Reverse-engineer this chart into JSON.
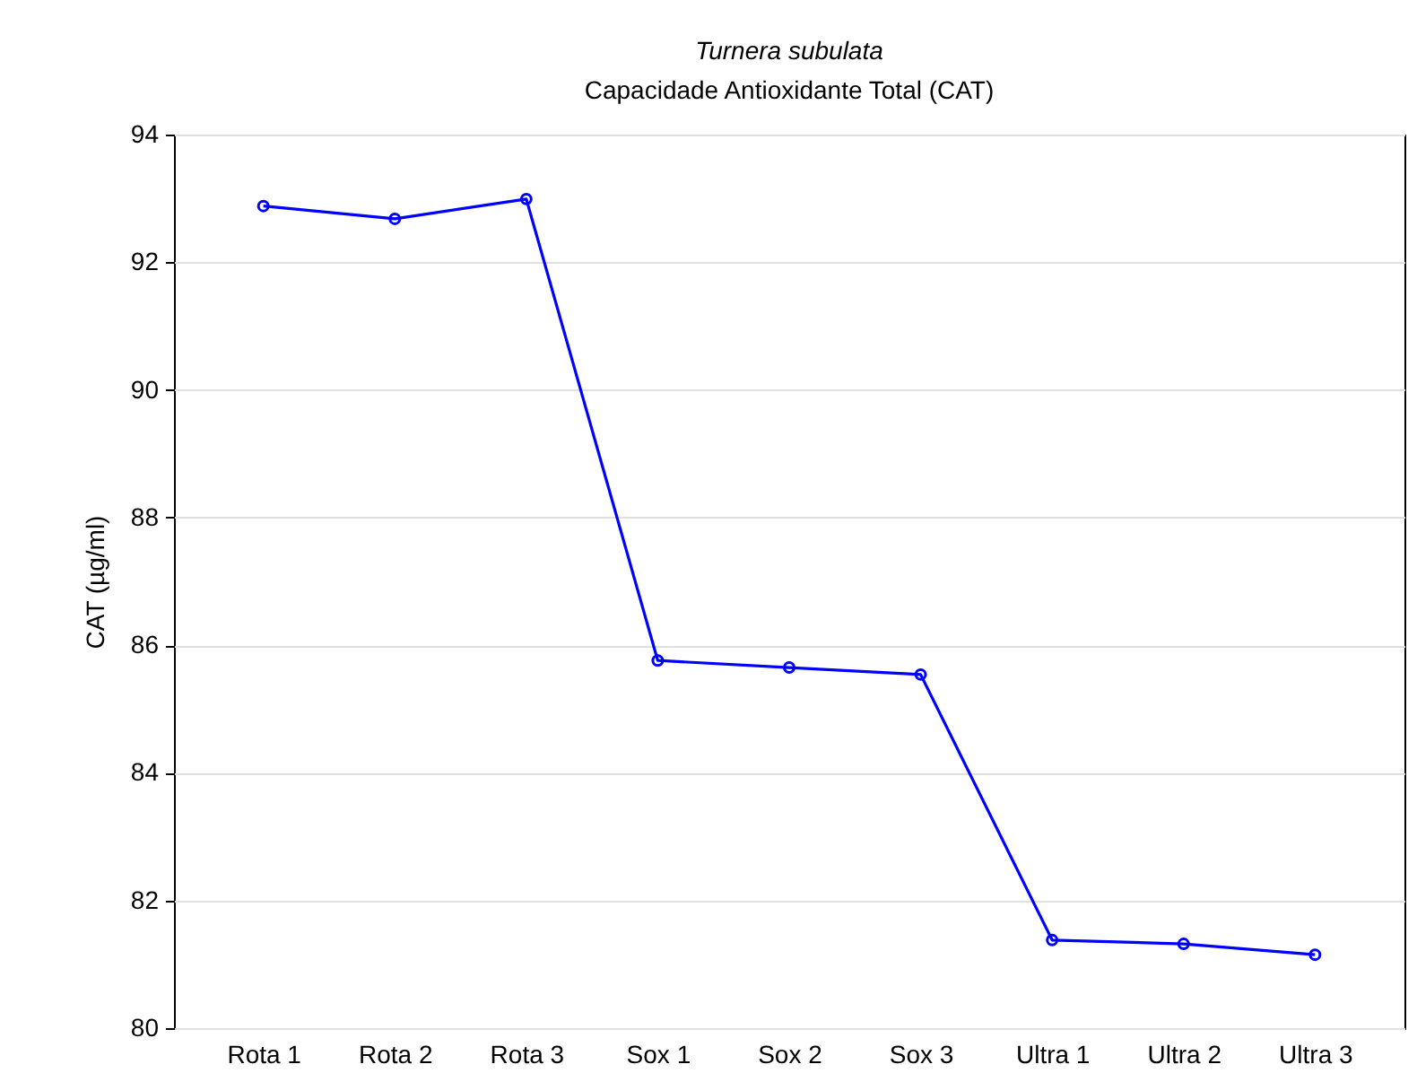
{
  "chart_data": {
    "type": "line",
    "title": "Turnera subulata",
    "subtitle": "Capacidade Antioxidante Total (CAT)",
    "ylabel": "CAT (µg/ml)",
    "categories": [
      "Rota 1",
      "Rota 2",
      "Rota 3",
      "Sox 1",
      "Sox 2",
      "Sox 3",
      "Ultra 1",
      "Ultra 2",
      "Ultra 3"
    ],
    "series": [
      {
        "color": "#0000ff",
        "values": [
          92.88,
          92.68,
          92.99,
          85.76,
          85.65,
          85.54,
          81.38,
          81.32,
          81.15
        ]
      }
    ],
    "ylim": [
      80,
      94
    ],
    "yticks": [
      80,
      82,
      84,
      86,
      88,
      90,
      92,
      94
    ],
    "grid": "y",
    "marker": "circle",
    "line_style": "solid",
    "legend": false
  }
}
